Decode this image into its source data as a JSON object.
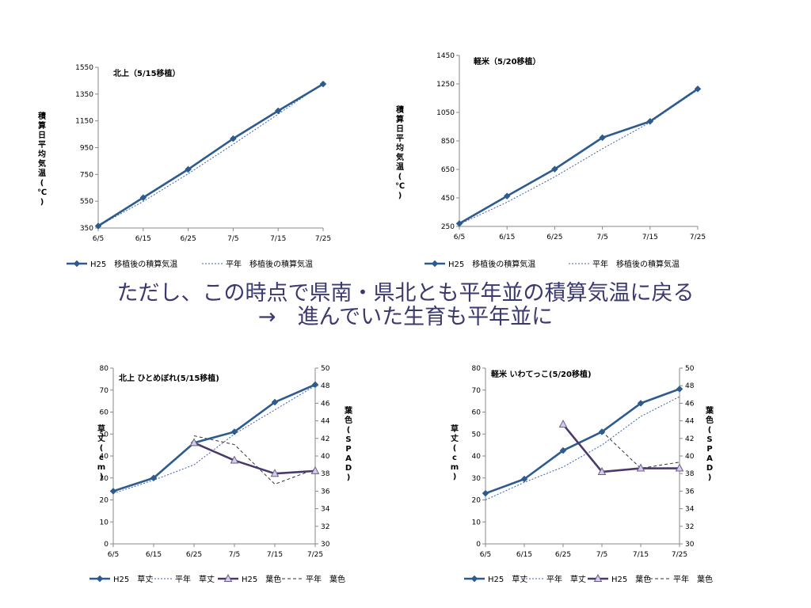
{
  "message": {
    "line1": "ただし、この時点で県南・県北とも平年並の積算気温に戻る",
    "line2": "→　進んでいた生育も平年並に"
  },
  "colors": {
    "h25": "#2e5b8f",
    "normal": "#3d5fae",
    "leaf": "#4a3a6b",
    "leaf_normal": "#333333",
    "heading": "#3a3970",
    "marker_fill": "#d6cbe8"
  },
  "chart_data": [
    {
      "type": "line",
      "title": "北上（5/15移植）",
      "ylabel": "積算日平均気温(℃)",
      "ylim": [
        350,
        1550
      ],
      "yticks": [
        350,
        550,
        750,
        950,
        1150,
        1350,
        1550
      ],
      "categories": [
        "6/5",
        "6/15",
        "6/25",
        "7/5",
        "7/15",
        "7/25"
      ],
      "series": [
        {
          "name": "H25　移植後の積算気温",
          "values": [
            365,
            577,
            788,
            1017,
            1225,
            1425
          ]
        },
        {
          "name": "平年　移植後の積算気温",
          "values": [
            365,
            548,
            755,
            975,
            1200,
            1430
          ]
        }
      ]
    },
    {
      "type": "line",
      "title": "軽米（5/20移植）",
      "ylabel": "積算日平均気温(℃)",
      "ylim": [
        250,
        1450
      ],
      "yticks": [
        250,
        450,
        650,
        850,
        1050,
        1250,
        1450
      ],
      "categories": [
        "6/5",
        "6/15",
        "6/25",
        "7/5",
        "7/15",
        "7/25"
      ],
      "series": [
        {
          "name": "H25　移植後の積算気温",
          "values": [
            270,
            463,
            652,
            873,
            987,
            1215
          ]
        },
        {
          "name": "平年　移植後の積算気温",
          "values": [
            265,
            420,
            598,
            795,
            980,
            1208
          ]
        }
      ]
    },
    {
      "type": "line",
      "title": "北上 ひとめぼれ(5/15移植)",
      "ylabel": "草丈(cm)",
      "y2label": "葉色(SPAD)",
      "ylim": [
        0,
        80
      ],
      "yticks": [
        0,
        10,
        20,
        30,
        40,
        50,
        60,
        70,
        80
      ],
      "y2lim": [
        30,
        50
      ],
      "y2ticks": [
        30,
        32,
        34,
        36,
        38,
        40,
        42,
        44,
        46,
        48,
        50
      ],
      "categories": [
        "6/5",
        "6/15",
        "6/25",
        "7/5",
        "7/15",
        "7/25"
      ],
      "series": [
        {
          "name": "H25　草丈",
          "axis": "left",
          "values": [
            24,
            30,
            46,
            51,
            64.5,
            72.5
          ]
        },
        {
          "name": "平年　草丈",
          "axis": "left",
          "values": [
            23,
            29,
            36,
            50,
            61,
            72
          ]
        },
        {
          "name": "H25　葉色",
          "axis": "right",
          "values": [
            null,
            null,
            41.5,
            39.5,
            38,
            38.3
          ]
        },
        {
          "name": "平年　葉色",
          "axis": "right",
          "values": [
            null,
            null,
            42.3,
            41.3,
            36.8,
            38.5
          ]
        }
      ]
    },
    {
      "type": "line",
      "title": "軽米 いわてっこ(5/20移植)",
      "ylabel": "草丈(cm)",
      "y2label": "葉色(SPAD)",
      "ylim": [
        0,
        80
      ],
      "yticks": [
        0,
        10,
        20,
        30,
        40,
        50,
        60,
        70,
        80
      ],
      "y2lim": [
        30,
        50
      ],
      "y2ticks": [
        30,
        32,
        34,
        36,
        38,
        40,
        42,
        44,
        46,
        48,
        50
      ],
      "categories": [
        "6/5",
        "6/15",
        "6/25",
        "7/5",
        "7/15",
        "7/25"
      ],
      "series": [
        {
          "name": "H25　草丈",
          "axis": "left",
          "values": [
            23,
            29.5,
            42.5,
            51,
            64,
            70.5
          ]
        },
        {
          "name": "平年　草丈",
          "axis": "left",
          "values": [
            20,
            28,
            35,
            45,
            58,
            67
          ]
        },
        {
          "name": "H25　葉色",
          "axis": "right",
          "values": [
            null,
            null,
            43.6,
            38.2,
            38.6,
            38.6
          ]
        },
        {
          "name": "平年　葉色",
          "axis": "right",
          "values": [
            null,
            null,
            null,
            42.8,
            38.6,
            39.3
          ]
        }
      ]
    }
  ]
}
